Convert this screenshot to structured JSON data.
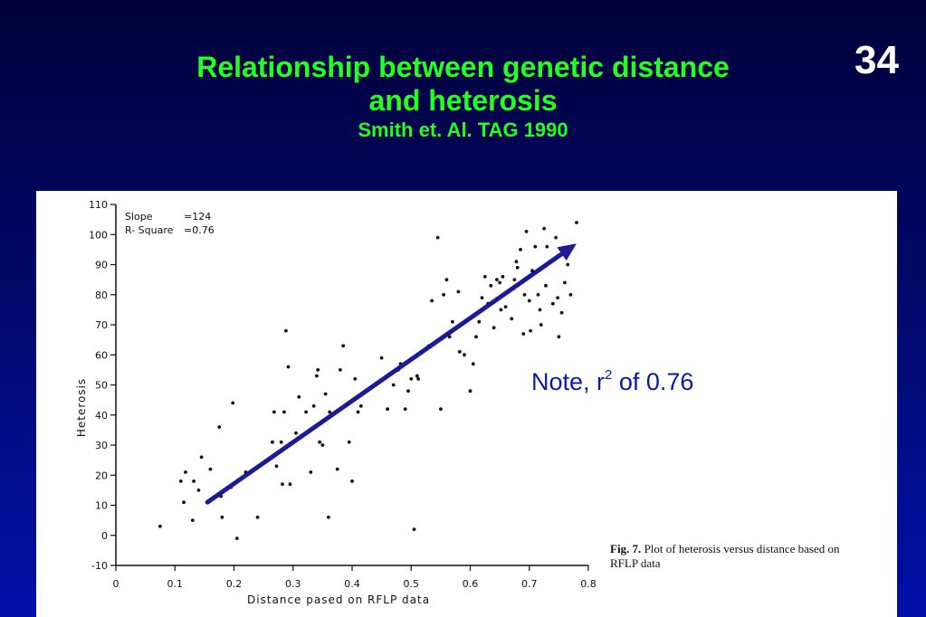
{
  "slide": {
    "number": "34",
    "title_line1": "Relationship between genetic distance",
    "title_line2": "and heterosis",
    "subtitle": "Smith et. Al. TAG 1990"
  },
  "note": {
    "prefix": "Note, r",
    "superscript": "2",
    "suffix": " of 0.76"
  },
  "caption": {
    "fig_label": "Fig. 7.",
    "text": " Plot of heterosis versus distance based on RFLP data"
  },
  "colors": {
    "title": "#22ff22",
    "arrow": "#1a1a9a",
    "note": "#0a1aa8",
    "background": "#000866"
  },
  "chart_data": {
    "type": "scatter",
    "xlabel": "Distance pased on RFLP data",
    "ylabel": "Heterosis",
    "xlim": [
      0,
      0.8
    ],
    "ylim": [
      -10,
      110
    ],
    "x_ticks": [
      "0",
      "0.1",
      "0.2",
      "0.3",
      "0.4",
      "0.5",
      "0.6",
      "0.7",
      "0.8"
    ],
    "y_ticks": [
      "-10",
      "0",
      "10",
      "20",
      "30",
      "40",
      "50",
      "60",
      "70",
      "80",
      "90",
      "100",
      "110"
    ],
    "stats": [
      {
        "label": "Slope",
        "value": "=124"
      },
      {
        "label": "R- Square",
        "value": "=0.76"
      }
    ],
    "trend_arrow": {
      "from": [
        0.155,
        11
      ],
      "to": [
        0.78,
        97
      ]
    },
    "points": [
      [
        0.075,
        3
      ],
      [
        0.11,
        18
      ],
      [
        0.115,
        11
      ],
      [
        0.118,
        21
      ],
      [
        0.13,
        5
      ],
      [
        0.132,
        18
      ],
      [
        0.14,
        15
      ],
      [
        0.145,
        26
      ],
      [
        0.16,
        22
      ],
      [
        0.175,
        36
      ],
      [
        0.178,
        13
      ],
      [
        0.18,
        6
      ],
      [
        0.195,
        16
      ],
      [
        0.198,
        44
      ],
      [
        0.205,
        -1
      ],
      [
        0.22,
        21
      ],
      [
        0.24,
        6
      ],
      [
        0.265,
        31
      ],
      [
        0.268,
        41
      ],
      [
        0.272,
        23
      ],
      [
        0.28,
        31
      ],
      [
        0.282,
        17
      ],
      [
        0.285,
        41
      ],
      [
        0.288,
        68
      ],
      [
        0.292,
        56
      ],
      [
        0.295,
        17
      ],
      [
        0.305,
        34
      ],
      [
        0.31,
        46
      ],
      [
        0.315,
        33
      ],
      [
        0.322,
        41
      ],
      [
        0.33,
        21
      ],
      [
        0.335,
        43
      ],
      [
        0.34,
        53
      ],
      [
        0.342,
        55
      ],
      [
        0.345,
        31
      ],
      [
        0.35,
        30
      ],
      [
        0.355,
        47
      ],
      [
        0.36,
        6
      ],
      [
        0.362,
        41
      ],
      [
        0.375,
        22
      ],
      [
        0.38,
        55
      ],
      [
        0.385,
        63
      ],
      [
        0.395,
        31
      ],
      [
        0.4,
        18
      ],
      [
        0.405,
        52
      ],
      [
        0.41,
        41
      ],
      [
        0.415,
        43
      ],
      [
        0.45,
        59
      ],
      [
        0.46,
        42
      ],
      [
        0.47,
        50
      ],
      [
        0.478,
        55
      ],
      [
        0.482,
        57
      ],
      [
        0.49,
        42
      ],
      [
        0.495,
        48
      ],
      [
        0.5,
        52
      ],
      [
        0.505,
        2
      ],
      [
        0.51,
        53
      ],
      [
        0.512,
        52
      ],
      [
        0.53,
        63
      ],
      [
        0.535,
        78
      ],
      [
        0.545,
        99
      ],
      [
        0.55,
        42
      ],
      [
        0.555,
        80
      ],
      [
        0.56,
        85
      ],
      [
        0.565,
        66
      ],
      [
        0.57,
        71
      ],
      [
        0.58,
        81
      ],
      [
        0.582,
        61
      ],
      [
        0.59,
        60
      ],
      [
        0.6,
        48
      ],
      [
        0.605,
        57
      ],
      [
        0.61,
        66
      ],
      [
        0.615,
        71
      ],
      [
        0.62,
        79
      ],
      [
        0.625,
        86
      ],
      [
        0.63,
        77
      ],
      [
        0.635,
        83
      ],
      [
        0.64,
        69
      ],
      [
        0.645,
        85
      ],
      [
        0.65,
        84
      ],
      [
        0.652,
        75
      ],
      [
        0.655,
        86
      ],
      [
        0.66,
        76
      ],
      [
        0.665,
        81
      ],
      [
        0.67,
        72
      ],
      [
        0.675,
        85
      ],
      [
        0.678,
        91
      ],
      [
        0.68,
        89
      ],
      [
        0.685,
        95
      ],
      [
        0.69,
        67
      ],
      [
        0.692,
        80
      ],
      [
        0.695,
        101
      ],
      [
        0.7,
        78
      ],
      [
        0.702,
        68
      ],
      [
        0.705,
        88
      ],
      [
        0.71,
        96
      ],
      [
        0.715,
        80
      ],
      [
        0.718,
        75
      ],
      [
        0.72,
        70
      ],
      [
        0.725,
        102
      ],
      [
        0.728,
        83
      ],
      [
        0.73,
        96
      ],
      [
        0.735,
        91
      ],
      [
        0.74,
        77
      ],
      [
        0.745,
        99
      ],
      [
        0.748,
        79
      ],
      [
        0.75,
        66
      ],
      [
        0.755,
        74
      ],
      [
        0.76,
        84
      ],
      [
        0.765,
        90
      ],
      [
        0.77,
        80
      ],
      [
        0.78,
        104
      ]
    ]
  }
}
